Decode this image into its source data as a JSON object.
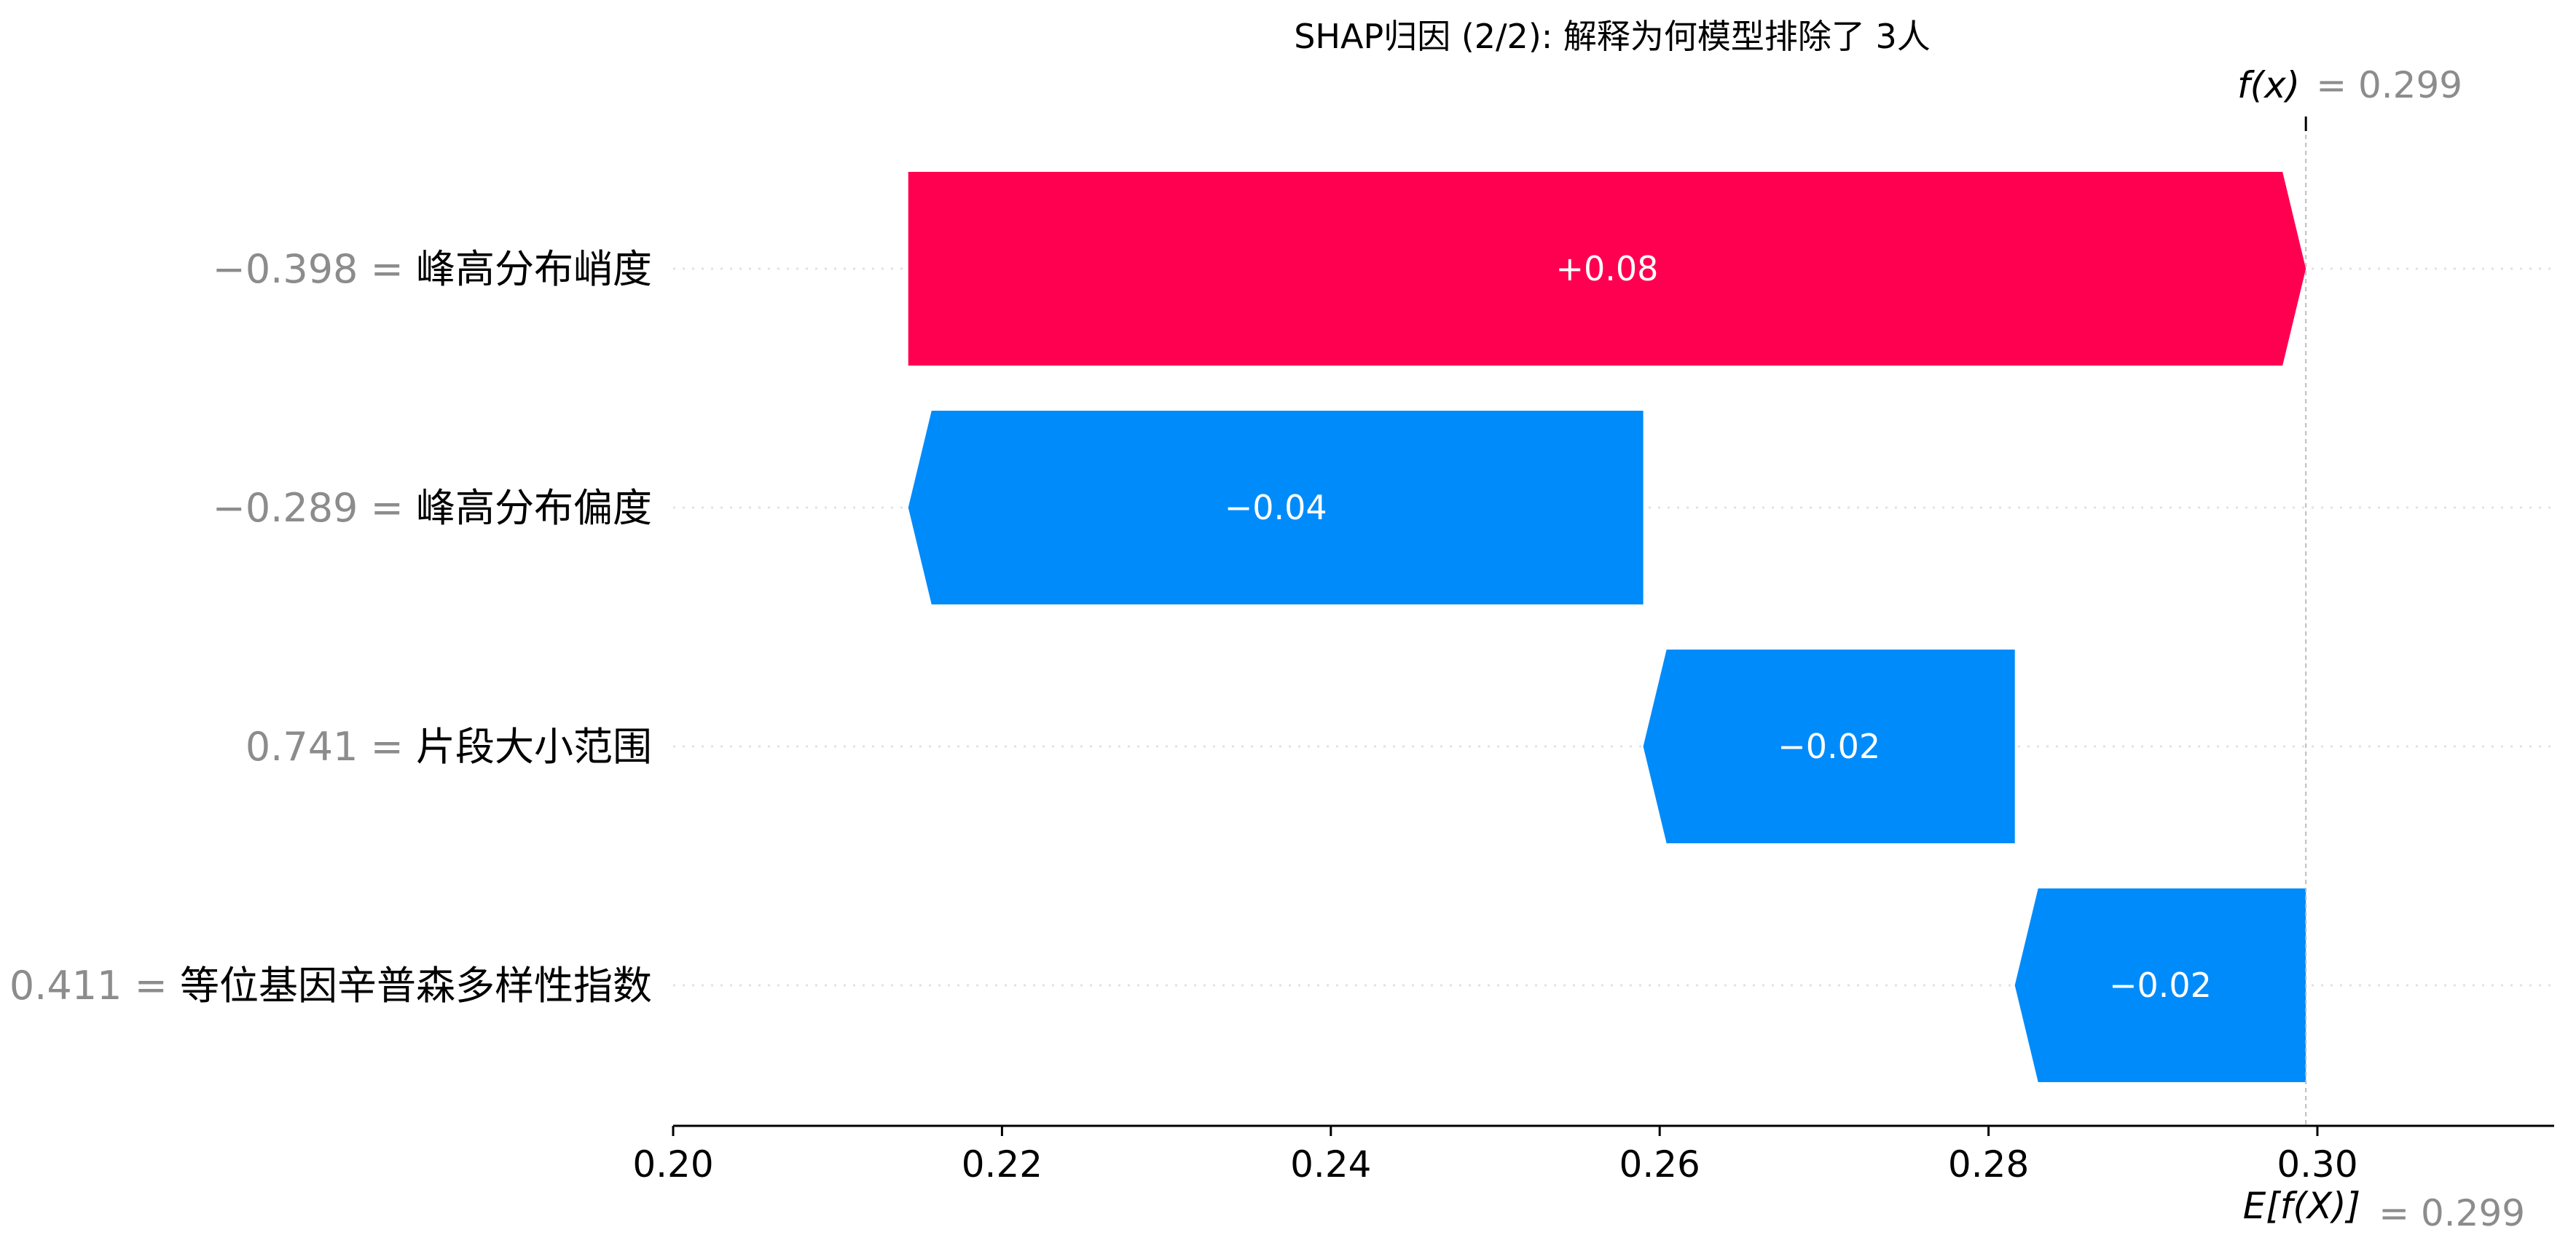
{
  "chart_data": {
    "type": "bar",
    "title": "SHAP归因 (2/2): 解释为何模型排除了 3人",
    "xlim": [
      0.2,
      0.313
    ],
    "x_ticks": [
      "0.20",
      "0.22",
      "0.24",
      "0.26",
      "0.28",
      "0.30"
    ],
    "x_tick_values": [
      0.2,
      0.22,
      0.24,
      0.26,
      0.28,
      0.3
    ],
    "fx": {
      "label": "f(x)",
      "value_text": "= 0.299",
      "value": 0.2993
    },
    "efx": {
      "label": "E[f(X)]",
      "value_text": "= 0.299",
      "value": 0.2993
    },
    "features": [
      {
        "value_text": "−0.398 =",
        "name": "峰高分布峭度",
        "start": 0.2143,
        "end": 0.2993,
        "shap_text": "+0.08",
        "color": "#ff0051"
      },
      {
        "value_text": "−0.289 =",
        "name": "峰高分布偏度",
        "start": 0.259,
        "end": 0.2143,
        "shap_text": "−0.04",
        "color": "#008bfb"
      },
      {
        "value_text": "0.741 =",
        "name": "片段大小范围",
        "start": 0.2816,
        "end": 0.259,
        "shap_text": "−0.02",
        "color": "#008bfb"
      },
      {
        "value_text": "0.411 =",
        "name": "等位基因辛普森多样性指数",
        "start": 0.2993,
        "end": 0.2816,
        "shap_text": "−0.02",
        "color": "#008bfb"
      }
    ],
    "grid": false,
    "legend": "none"
  }
}
